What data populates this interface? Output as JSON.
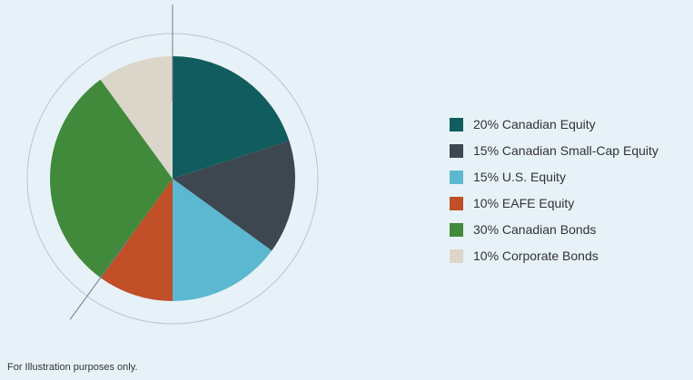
{
  "background": "#e7f2f8",
  "footnote": "For Illustration purposes only.",
  "chart_data": {
    "type": "pie",
    "title": "",
    "start_angle_deg": 0,
    "direction": "clockwise",
    "legend_position": "right",
    "slices": [
      {
        "name": "canadian-equity",
        "label": "20% Canadian Equity",
        "value": 20,
        "color": "#115c5e"
      },
      {
        "name": "canadian-small-cap-equity",
        "label": "15% Canadian Small-Cap Equity",
        "value": 15,
        "color": "#3d4750"
      },
      {
        "name": "us-equity",
        "label": "15% U.S. Equity",
        "value": 15,
        "color": "#5cb8d1"
      },
      {
        "name": "eafe-equity",
        "label": "10% EAFE Equity",
        "value": 10,
        "color": "#c14f27"
      },
      {
        "name": "canadian-bonds",
        "label": "30% Canadian Bonds",
        "value": 30,
        "color": "#418a3b"
      },
      {
        "name": "corporate-bonds",
        "label": "10% Corporate Bonds",
        "value": 10,
        "color": "#dcd6ca"
      }
    ],
    "guide_line_angles_deg": [
      0,
      216
    ],
    "outer_ring_color": "#b7c6ce"
  }
}
